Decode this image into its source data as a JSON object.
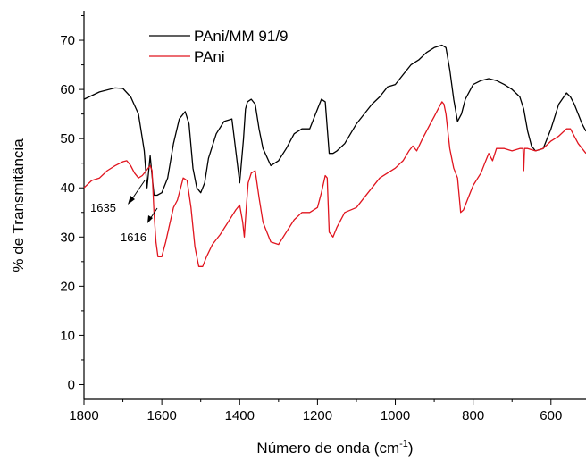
{
  "chart_data": {
    "type": "line",
    "title": "",
    "xlabel": "Número de onda (cm",
    "xlabel_sup": "-1",
    "xlabel_suffix": ")",
    "ylabel": "% de Transmitância",
    "xlim": [
      1800,
      510
    ],
    "ylim": [
      -3,
      76
    ],
    "x_reversed": true,
    "x_ticks": [
      1800,
      1600,
      1400,
      1200,
      1000,
      800,
      600
    ],
    "y_ticks": [
      0,
      10,
      20,
      30,
      40,
      50,
      60,
      70
    ],
    "grid": false,
    "legend_position": "top-center",
    "series": [
      {
        "name": "PAni/MM 91/9",
        "color": "#000000",
        "x": [
          1800,
          1760,
          1720,
          1700,
          1680,
          1660,
          1645,
          1638,
          1630,
          1625,
          1620,
          1612,
          1600,
          1585,
          1570,
          1555,
          1540,
          1530,
          1520,
          1510,
          1500,
          1490,
          1480,
          1460,
          1440,
          1420,
          1400,
          1390,
          1385,
          1380,
          1370,
          1360,
          1350,
          1340,
          1320,
          1300,
          1280,
          1260,
          1240,
          1220,
          1200,
          1190,
          1180,
          1170,
          1160,
          1150,
          1130,
          1100,
          1080,
          1060,
          1040,
          1020,
          1000,
          980,
          970,
          960,
          950,
          940,
          920,
          900,
          880,
          870,
          860,
          850,
          840,
          830,
          820,
          800,
          780,
          760,
          740,
          720,
          700,
          680,
          670,
          660,
          650,
          640,
          620,
          600,
          580,
          560,
          550,
          540,
          520,
          510
        ],
        "y": [
          58.0,
          59.5,
          60.3,
          60.2,
          58.5,
          55.0,
          47.5,
          40.0,
          46.5,
          42.5,
          38.5,
          38.5,
          39.0,
          42.0,
          49.0,
          54.0,
          55.5,
          53.0,
          44.0,
          40.0,
          39.0,
          41.0,
          46.0,
          51.0,
          53.5,
          54.0,
          41.0,
          50.0,
          56.0,
          57.5,
          58.0,
          57.0,
          52.0,
          48.0,
          44.5,
          45.5,
          48.0,
          51.0,
          52.0,
          52.0,
          56.0,
          58.0,
          57.5,
          47.0,
          47.0,
          47.5,
          49.0,
          53.0,
          55.0,
          57.0,
          58.5,
          60.5,
          61.0,
          63.0,
          64.0,
          65.0,
          65.5,
          66.0,
          67.5,
          68.5,
          69.0,
          68.5,
          64.0,
          58.0,
          53.5,
          55.0,
          58.0,
          61.0,
          61.8,
          62.2,
          61.8,
          61.0,
          60.0,
          58.5,
          56.0,
          51.5,
          48.5,
          47.5,
          48.0,
          52.0,
          57.0,
          59.3,
          58.5,
          57.0,
          53.0,
          51.5
        ]
      },
      {
        "name": "PAni",
        "color": "#e0141e",
        "x": [
          1800,
          1780,
          1760,
          1740,
          1720,
          1700,
          1690,
          1680,
          1670,
          1660,
          1650,
          1640,
          1630,
          1625,
          1620,
          1615,
          1610,
          1600,
          1590,
          1580,
          1570,
          1560,
          1545,
          1535,
          1525,
          1515,
          1505,
          1495,
          1485,
          1470,
          1450,
          1430,
          1410,
          1400,
          1392,
          1388,
          1383,
          1378,
          1370,
          1360,
          1350,
          1340,
          1320,
          1300,
          1280,
          1260,
          1240,
          1220,
          1200,
          1190,
          1180,
          1175,
          1170,
          1160,
          1150,
          1130,
          1100,
          1080,
          1060,
          1040,
          1020,
          1000,
          980,
          965,
          955,
          945,
          930,
          910,
          900,
          890,
          880,
          875,
          870,
          860,
          850,
          840,
          832,
          825,
          810,
          800,
          780,
          770,
          760,
          750,
          740,
          720,
          700,
          680,
          672,
          670,
          668,
          660,
          640,
          620,
          600,
          580,
          560,
          550,
          540,
          530,
          510
        ],
        "y": [
          40.0,
          41.5,
          42.0,
          43.5,
          44.5,
          45.3,
          45.5,
          44.5,
          43.0,
          42.0,
          42.5,
          43.5,
          44.5,
          43.5,
          35.0,
          29.0,
          26.0,
          26.0,
          29.0,
          32.5,
          36.0,
          37.5,
          42.0,
          41.5,
          36.0,
          28.0,
          24.0,
          24.0,
          26.0,
          28.5,
          30.5,
          33.0,
          35.5,
          36.5,
          33.0,
          30.0,
          36.0,
          41.0,
          43.0,
          43.5,
          38.0,
          33.0,
          29.0,
          28.5,
          31.0,
          33.5,
          35.0,
          35.0,
          36.0,
          39.0,
          42.5,
          42.0,
          31.0,
          30.0,
          32.0,
          35.0,
          36.0,
          38.0,
          40.0,
          42.0,
          43.0,
          44.0,
          45.5,
          47.5,
          48.5,
          47.5,
          50.0,
          53.0,
          54.5,
          56.0,
          57.5,
          57.0,
          55.0,
          48.0,
          44.0,
          42.0,
          35.0,
          35.5,
          38.5,
          40.5,
          43.0,
          45.0,
          47.0,
          45.5,
          48.0,
          48.0,
          47.5,
          48.0,
          48.0,
          43.5,
          48.0,
          48.0,
          47.5,
          48.0,
          49.5,
          50.5,
          52.0,
          52.0,
          50.5,
          49.0,
          47.0
        ]
      }
    ],
    "annotations": [
      {
        "text": "1635",
        "x": 1635
      },
      {
        "text": "1616",
        "x": 1616
      }
    ]
  }
}
